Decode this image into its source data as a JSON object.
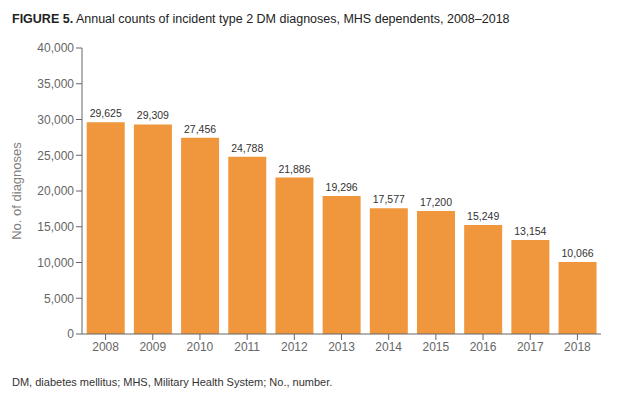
{
  "chart_data": {
    "type": "bar",
    "title": "FIGURE 5. Annual counts of incident type 2 DM diagnoses, MHS dependents, 2008–2018",
    "categories": [
      "2008",
      "2009",
      "2010",
      "2011",
      "2012",
      "2013",
      "2014",
      "2015",
      "2016",
      "2017",
      "2018"
    ],
    "values": [
      29625,
      29309,
      27456,
      24788,
      21886,
      19296,
      17577,
      17200,
      15249,
      13154,
      10066
    ],
    "value_labels": [
      "29,625",
      "29,309",
      "27,456",
      "24,788",
      "21,886",
      "19,296",
      "17,577",
      "17,200",
      "15,249",
      "13,154",
      "10,066"
    ],
    "data_labels": true,
    "color": "#F0963C",
    "ylabel": "No. of diagnoses",
    "ylim": [
      0,
      40000
    ],
    "yticks": [
      0,
      {
        "value": 5000,
        "label": "5,000"
      },
      {
        "value": 10000,
        "label": "10,000"
      },
      {
        "value": 15000,
        "label": "15,000"
      },
      {
        "value": 20000,
        "label": "20,000"
      },
      {
        "value": 25000,
        "label": "25,000"
      },
      {
        "value": 30000,
        "label": "30,000"
      },
      {
        "value": 35000,
        "label": "35,000"
      },
      {
        "value": 40000,
        "label": "40,000"
      }
    ],
    "grid": false,
    "annotations": [
      "DM, diabetes mellitus; MHS, Military Health System; No., number."
    ]
  }
}
